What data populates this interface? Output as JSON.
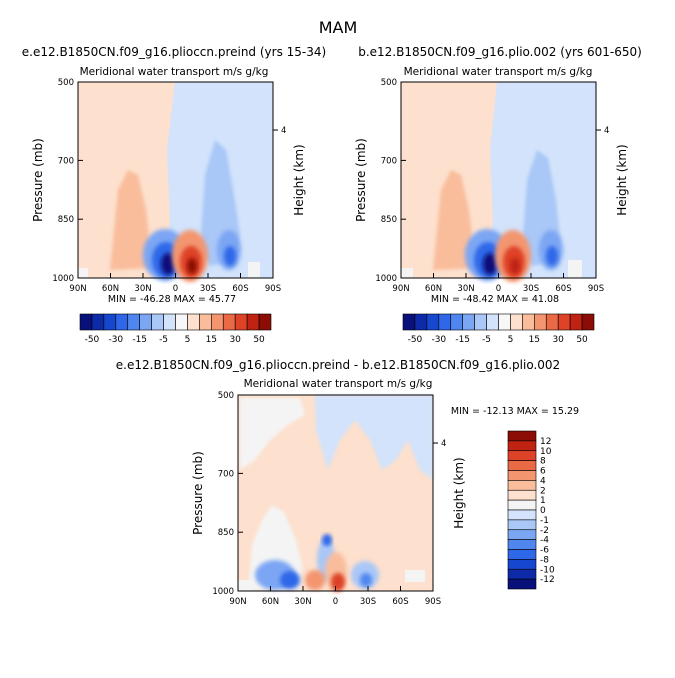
{
  "figure_title": "MAM",
  "colors": {
    "background": "#ffffff",
    "zero_fill": "#f4f4f4",
    "scale_full": [
      "#08107a",
      "#0d2ba8",
      "#1648cf",
      "#2e67e8",
      "#4f86f0",
      "#7ba6f4",
      "#a9c7f7",
      "#d2e3fb",
      "#f7f7f7",
      "#fde0cd",
      "#f9bd9c",
      "#f39670",
      "#ea6a45",
      "#de4328",
      "#c02312",
      "#8c0d05"
    ],
    "scale_diff": [
      "#08107a",
      "#0d2ba8",
      "#1648cf",
      "#2e67e8",
      "#4f86f0",
      "#7ba6f4",
      "#a9c7f7",
      "#d2e3fb",
      "#f4f4f4",
      "#fde0cd",
      "#f9bd9c",
      "#f39670",
      "#ea6a45",
      "#de4328",
      "#c02312",
      "#8c0d05"
    ]
  },
  "panels": [
    {
      "id": "left",
      "title": "e.e12.B1850CN.f09_g16.plioccn.preind (yrs 15-34)",
      "subtitle": "Meridional water transport m/s g/kg",
      "stats": "MIN = -46.28   MAX =  45.77"
    },
    {
      "id": "right",
      "title": "b.e12.B1850CN.f09_g16.plio.002 (yrs 601-650)",
      "subtitle": "Meridional water transport m/s g/kg",
      "stats": "MIN = -48.42   MAX =  41.08"
    },
    {
      "id": "diff",
      "title": "e.e12.B1850CN.f09_g16.plioccn.preind - b.e12.B1850CN.f09_g16.plio.002",
      "subtitle": "Meridional water transport m/s g/kg",
      "stats": "MIN = -12.13   MAX =  15.29"
    }
  ],
  "axes": {
    "ylabel": "Pressure (mb)",
    "right_label": "Height (km)",
    "right_tick": "4",
    "x_ticks": [
      "90N",
      "60N",
      "30N",
      "0",
      "30S",
      "60S",
      "90S"
    ],
    "y_ticks": [
      "500",
      "700",
      "850",
      "1000"
    ]
  },
  "colorbar_top": {
    "labels": [
      "-50",
      "-30",
      "-15",
      "-5",
      "5",
      "15",
      "30",
      "50"
    ]
  },
  "colorbar_diff": {
    "labels": [
      "12",
      "10",
      "8",
      "6",
      "4",
      "2",
      "1",
      "0",
      "-1",
      "-2",
      "-4",
      "-6",
      "-8",
      "-10",
      "-12"
    ]
  },
  "chart_data": [
    {
      "type": "heatmap",
      "title": "e.e12.B1850CN.f09_g16.plioccn.preind (yrs 15-34)",
      "subtitle": "Meridional water transport m/s g/kg",
      "xlabel": "",
      "ylabel": "Pressure (mb)",
      "x_range": [
        "90N",
        "90S"
      ],
      "ylim": [
        1000,
        500
      ],
      "units": "m/s g/kg",
      "min": -46.28,
      "max": 45.77,
      "levels": [
        -50,
        -45,
        -40,
        -35,
        -30,
        -25,
        -20,
        -15,
        -10,
        -5,
        5,
        10,
        15,
        20,
        25,
        30,
        35,
        40,
        45,
        50
      ],
      "features": [
        {
          "region": "northern hemisphere, 500-1000 mb",
          "sign": "positive",
          "approx_value": 5
        },
        {
          "region": "southern hemisphere, 500-1000 mb",
          "sign": "negative",
          "approx_value": -5
        },
        {
          "region": "near 0-15N, 850-1000 mb",
          "sign": "negative",
          "approx_value": -45
        },
        {
          "region": "near 0-15S, 850-1000 mb",
          "sign": "positive",
          "approx_value": 45
        }
      ]
    },
    {
      "type": "heatmap",
      "title": "b.e12.B1850CN.f09_g16.plio.002 (yrs 601-650)",
      "subtitle": "Meridional water transport m/s g/kg",
      "xlabel": "",
      "ylabel": "Pressure (mb)",
      "x_range": [
        "90N",
        "90S"
      ],
      "ylim": [
        1000,
        500
      ],
      "units": "m/s g/kg",
      "min": -48.42,
      "max": 41.08,
      "levels": [
        -50,
        -45,
        -40,
        -35,
        -30,
        -25,
        -20,
        -15,
        -10,
        -5,
        5,
        10,
        15,
        20,
        25,
        30,
        35,
        40,
        45,
        50
      ],
      "features": [
        {
          "region": "northern hemisphere, 500-1000 mb",
          "sign": "positive",
          "approx_value": 5
        },
        {
          "region": "southern hemisphere, 500-1000 mb",
          "sign": "negative",
          "approx_value": -5
        },
        {
          "region": "near 0-15N, 850-1000 mb",
          "sign": "negative",
          "approx_value": -45
        },
        {
          "region": "near 0-15S, 850-1000 mb",
          "sign": "positive",
          "approx_value": 40
        }
      ]
    },
    {
      "type": "heatmap",
      "title": "e.e12.B1850CN.f09_g16.plioccn.preind - b.e12.B1850CN.f09_g16.plio.002",
      "subtitle": "Meridional water transport m/s g/kg",
      "xlabel": "",
      "ylabel": "Pressure (mb)",
      "x_range": [
        "90N",
        "90S"
      ],
      "ylim": [
        1000,
        500
      ],
      "units": "m/s g/kg",
      "min": -12.13,
      "max": 15.29,
      "levels": [
        -12,
        -10,
        -8,
        -6,
        -4,
        -2,
        -1,
        0,
        1,
        2,
        4,
        6,
        8,
        10,
        12
      ],
      "features": [
        {
          "region": "most of domain",
          "sign": "small positive/negative",
          "approx_value": 1
        },
        {
          "region": "near 10N, 850 mb",
          "sign": "negative",
          "approx_value": -6
        },
        {
          "region": "near 0-10S, 950-1000 mb",
          "sign": "positive",
          "approx_value": 12
        }
      ]
    }
  ]
}
